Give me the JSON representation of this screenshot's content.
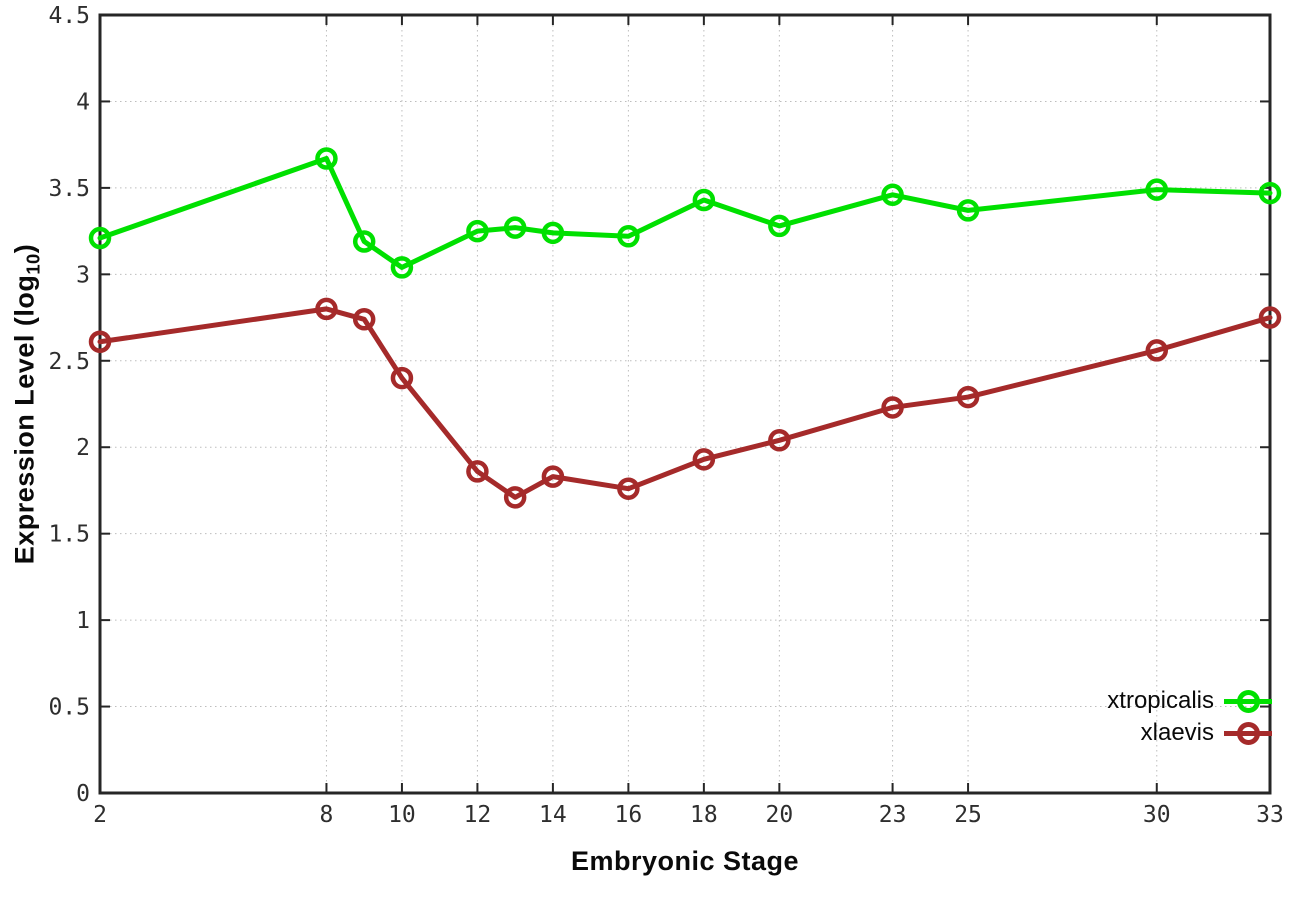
{
  "chart_data": {
    "type": "line",
    "xlabel": "Embryonic Stage",
    "ylabel_prefix": "Expression Level (log",
    "ylabel_sub": "10",
    "ylabel_suffix": ")",
    "x": [
      2,
      8,
      9,
      10,
      12,
      13,
      14,
      16,
      18,
      20,
      23,
      25,
      30,
      33
    ],
    "series": [
      {
        "name": "xtropicalis",
        "color": "#00e000",
        "values": [
          3.21,
          3.67,
          3.19,
          3.04,
          3.25,
          3.27,
          3.24,
          3.22,
          3.43,
          3.28,
          3.46,
          3.37,
          3.49,
          3.47
        ]
      },
      {
        "name": "xlaevis",
        "color": "#a52a2a",
        "values": [
          2.61,
          2.8,
          2.74,
          2.4,
          1.86,
          1.71,
          1.83,
          1.76,
          1.93,
          2.04,
          2.23,
          2.29,
          2.56,
          2.75
        ]
      }
    ],
    "x_ticks": [
      2,
      8,
      10,
      12,
      14,
      16,
      18,
      20,
      23,
      25,
      30,
      33
    ],
    "y_ticks": [
      0,
      0.5,
      1,
      1.5,
      2,
      2.5,
      3,
      3.5,
      4,
      4.5
    ],
    "xlim": [
      2,
      33
    ],
    "ylim": [
      0,
      4.5
    ],
    "grid": true,
    "legend_position": "bottom-right",
    "title": ""
  },
  "colors": {
    "background": "#ffffff",
    "border": "#262626",
    "grid": "#bdbdbd",
    "tick_text": "#2e2e2e",
    "series_green": "#00e000",
    "series_red": "#a52a2a"
  }
}
